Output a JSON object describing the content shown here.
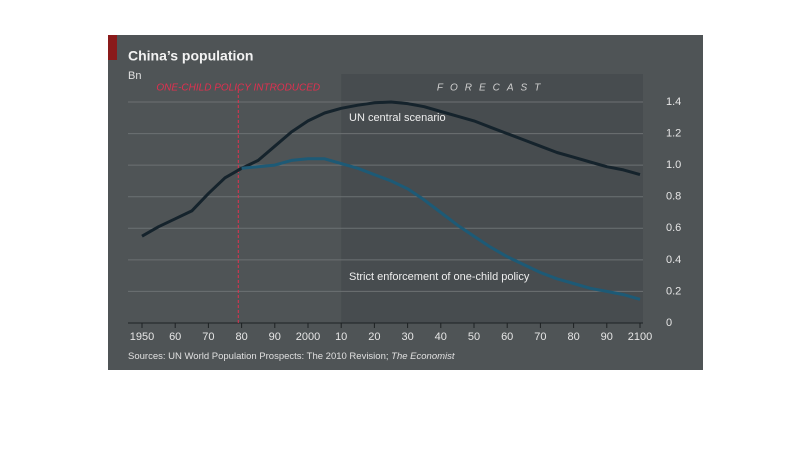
{
  "chart_data": {
    "type": "line",
    "title": "China’s population",
    "y_label": "Bn",
    "annotation": {
      "text": "ONE-CHILD POLICY INTRODUCED",
      "x": 1979
    },
    "forecast": {
      "label": "FORECAST",
      "start": 2010
    },
    "source": [
      "Sources: UN World Population Prospects: The 2010 Revision; ",
      "The Economist"
    ],
    "x": [
      1950,
      1955,
      1960,
      1965,
      1970,
      1975,
      1980,
      1985,
      1990,
      1995,
      2000,
      2005,
      2010,
      2015,
      2020,
      2025,
      2030,
      2035,
      2040,
      2045,
      2050,
      2055,
      2060,
      2065,
      2070,
      2075,
      2080,
      2085,
      2090,
      2095,
      2100
    ],
    "series": [
      {
        "name": "UN central scenario",
        "color": "#15232c",
        "values": [
          0.55,
          0.61,
          0.66,
          0.71,
          0.82,
          0.92,
          0.98,
          1.03,
          1.12,
          1.21,
          1.28,
          1.33,
          1.36,
          1.38,
          1.395,
          1.4,
          1.39,
          1.37,
          1.34,
          1.31,
          1.28,
          1.24,
          1.2,
          1.16,
          1.12,
          1.08,
          1.05,
          1.02,
          0.99,
          0.97,
          0.94
        ]
      },
      {
        "name": "Strict enforcement of one-child policy",
        "color": "#1d5a76",
        "values": [
          null,
          null,
          null,
          null,
          null,
          null,
          0.98,
          0.99,
          1.0,
          1.03,
          1.04,
          1.04,
          1.01,
          0.98,
          0.94,
          0.9,
          0.85,
          0.78,
          0.7,
          0.62,
          0.55,
          0.48,
          0.42,
          0.37,
          0.32,
          0.28,
          0.25,
          0.22,
          0.2,
          0.18,
          0.15
        ]
      }
    ],
    "xlim": [
      1950,
      2100
    ],
    "xticks": [
      {
        "value": 1950,
        "label": "1950"
      },
      {
        "value": 1960,
        "label": "60"
      },
      {
        "value": 1970,
        "label": "70"
      },
      {
        "value": 1980,
        "label": "80"
      },
      {
        "value": 1990,
        "label": "90"
      },
      {
        "value": 2000,
        "label": "2000"
      },
      {
        "value": 2010,
        "label": "10"
      },
      {
        "value": 2020,
        "label": "20"
      },
      {
        "value": 2030,
        "label": "30"
      },
      {
        "value": 2040,
        "label": "40"
      },
      {
        "value": 2050,
        "label": "50"
      },
      {
        "value": 2060,
        "label": "60"
      },
      {
        "value": 2070,
        "label": "70"
      },
      {
        "value": 2080,
        "label": "80"
      },
      {
        "value": 2090,
        "label": "90"
      },
      {
        "value": 2100,
        "label": "2100"
      }
    ],
    "ylim": [
      0,
      1.4
    ],
    "yticks": [
      0,
      0.2,
      0.4,
      0.6,
      0.8,
      {
        "value": 1,
        "label": "1.0"
      },
      1.2,
      1.4
    ],
    "grid": true
  }
}
